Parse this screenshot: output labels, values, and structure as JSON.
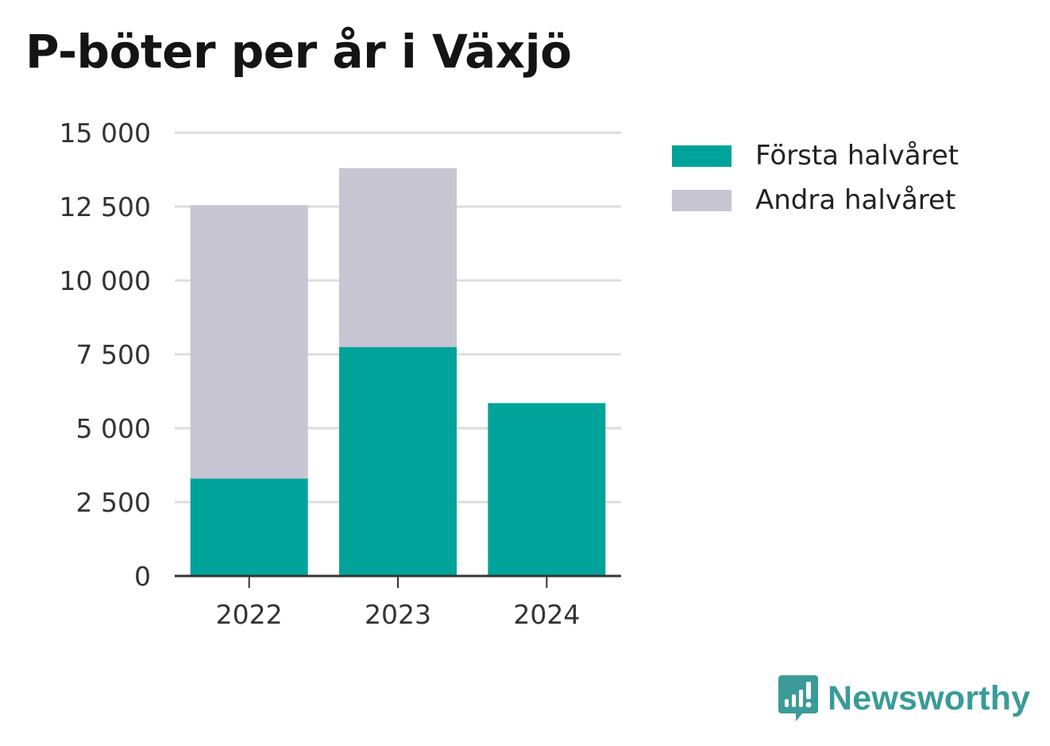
{
  "title": "P-böter per år i Växjö",
  "colors": {
    "first_half": "#00a39a",
    "second_half": "#c7c6d2",
    "grid": "#dddddd",
    "axis": "#333333",
    "brand": "#3a9b98"
  },
  "legend": {
    "items": [
      {
        "label": "Första halvåret",
        "color": "#00a39a"
      },
      {
        "label": "Andra halvåret",
        "color": "#c7c6d2"
      }
    ]
  },
  "brand": {
    "name": "Newsworthy",
    "icon": "newsworthy-logo-icon"
  },
  "chart_data": {
    "type": "bar",
    "stacked": true,
    "title": "P-böter per år i Växjö",
    "categories": [
      "2022",
      "2023",
      "2024"
    ],
    "series": [
      {
        "name": "Första halvåret",
        "values": [
          3300,
          7750,
          5850
        ]
      },
      {
        "name": "Andra halvåret",
        "values": [
          9250,
          6050,
          0
        ]
      }
    ],
    "ylim": [
      0,
      15000
    ],
    "yticks": [
      0,
      2500,
      5000,
      7500,
      10000,
      12500,
      15000
    ],
    "ytick_labels": [
      "0",
      "2 500",
      "5 000",
      "7 500",
      "10 000",
      "12 500",
      "15 000"
    ],
    "xlabel": "",
    "ylabel": "",
    "grid": true,
    "legend_position": "top-right"
  }
}
